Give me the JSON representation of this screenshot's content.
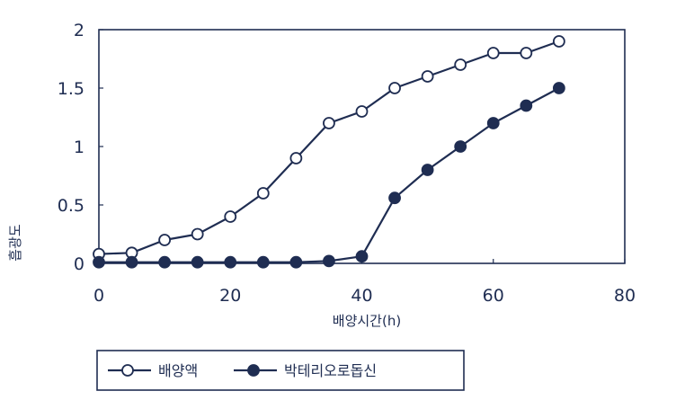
{
  "chart_data": {
    "type": "line",
    "title": "",
    "xlabel": "배양시간(h)",
    "ylabel": "흡광도",
    "xlim": [
      0,
      80
    ],
    "ylim": [
      0,
      2
    ],
    "x_ticks": [
      "0",
      "20",
      "40",
      "60",
      "80"
    ],
    "y_ticks": [
      "0",
      "0.5",
      "1",
      "1.5",
      "2"
    ],
    "grid": false,
    "legend_position": "bottom",
    "series": [
      {
        "name": "배양액",
        "marker": "open-circle",
        "color": "#1f2d52",
        "points": [
          [
            0,
            0.08
          ],
          [
            5,
            0.09
          ],
          [
            10,
            0.2
          ],
          [
            15,
            0.25
          ],
          [
            20,
            0.4
          ],
          [
            25,
            0.6
          ],
          [
            30,
            0.9
          ],
          [
            35,
            1.2
          ],
          [
            40,
            1.3
          ],
          [
            45,
            1.5
          ],
          [
            50,
            1.6
          ],
          [
            55,
            1.7
          ],
          [
            60,
            1.8
          ],
          [
            65,
            1.8
          ],
          [
            70,
            1.9
          ]
        ]
      },
      {
        "name": "박테리오로돕신",
        "marker": "filled-circle",
        "color": "#1f2d52",
        "points": [
          [
            0,
            0.01
          ],
          [
            5,
            0.01
          ],
          [
            10,
            0.01
          ],
          [
            15,
            0.01
          ],
          [
            20,
            0.01
          ],
          [
            25,
            0.01
          ],
          [
            30,
            0.01
          ],
          [
            35,
            0.02
          ],
          [
            40,
            0.06
          ],
          [
            45,
            0.56
          ],
          [
            50,
            0.8
          ],
          [
            55,
            1.0
          ],
          [
            60,
            1.2
          ],
          [
            65,
            1.35
          ],
          [
            70,
            1.5
          ]
        ]
      }
    ]
  }
}
